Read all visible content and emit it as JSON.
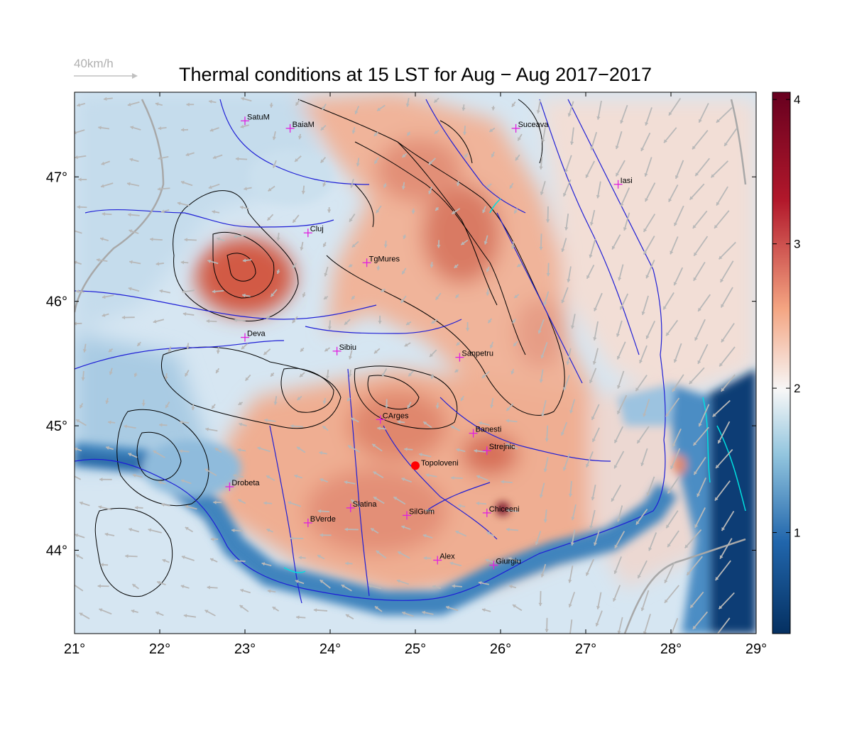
{
  "title": "Thermal conditions at 15 LST for Aug − Aug  2017−2017",
  "scale_label": "40km/h",
  "x_ticks": [
    "21°",
    "22°",
    "23°",
    "24°",
    "25°",
    "26°",
    "27°",
    "28°",
    "29°"
  ],
  "y_ticks": [
    "47°",
    "46°",
    "45°",
    "44°"
  ],
  "colorbar_ticks": [
    "4",
    "3",
    "2",
    "1"
  ],
  "colorbar_range": [
    0.3,
    4.05
  ],
  "map_extent": {
    "lon": [
      21,
      29
    ],
    "lat": [
      43.33,
      47.68
    ]
  },
  "colors": {
    "cold": "#053061",
    "cool": "#4393c3",
    "neutral": "#f7f7f7",
    "warm": "#f4a582",
    "hot": "#b2182b",
    "extreme": "#67001f",
    "rivers": "#1f1fd6",
    "wind": "#b8b8b8",
    "city_marker": "#e020e0",
    "highlight": "#ff0000",
    "contours": "#000000",
    "lakes": "#00e0e0"
  },
  "highlight_city": {
    "name": "Topoloveni",
    "lon": 25.0,
    "lat": 44.68
  },
  "cities": [
    {
      "name": "SatuM",
      "lon": 23.0,
      "lat": 47.45
    },
    {
      "name": "BaiaM",
      "lon": 23.53,
      "lat": 47.39
    },
    {
      "name": "Suceava",
      "lon": 26.18,
      "lat": 47.39
    },
    {
      "name": "Iasi",
      "lon": 27.38,
      "lat": 46.94
    },
    {
      "name": "Cluj",
      "lon": 23.74,
      "lat": 46.55
    },
    {
      "name": "TgMures",
      "lon": 24.43,
      "lat": 46.31
    },
    {
      "name": "Deva",
      "lon": 23.0,
      "lat": 45.71
    },
    {
      "name": "Sibiu",
      "lon": 24.08,
      "lat": 45.6
    },
    {
      "name": "Sanpetru",
      "lon": 25.52,
      "lat": 45.55
    },
    {
      "name": "CArges",
      "lon": 24.59,
      "lat": 45.05
    },
    {
      "name": "Banesti",
      "lon": 25.68,
      "lat": 44.94
    },
    {
      "name": "Strejnic",
      "lon": 25.84,
      "lat": 44.8
    },
    {
      "name": "Drobeta",
      "lon": 22.82,
      "lat": 44.51
    },
    {
      "name": "Slatina",
      "lon": 24.24,
      "lat": 44.34
    },
    {
      "name": "SilGum",
      "lon": 24.9,
      "lat": 44.28
    },
    {
      "name": "Chiceeni",
      "lon": 25.84,
      "lat": 44.3
    },
    {
      "name": "BVerde",
      "lon": 23.74,
      "lat": 44.22
    },
    {
      "name": "Alex",
      "lon": 25.26,
      "lat": 43.92
    },
    {
      "name": "Giurgiu",
      "lon": 25.92,
      "lat": 43.88
    }
  ]
}
